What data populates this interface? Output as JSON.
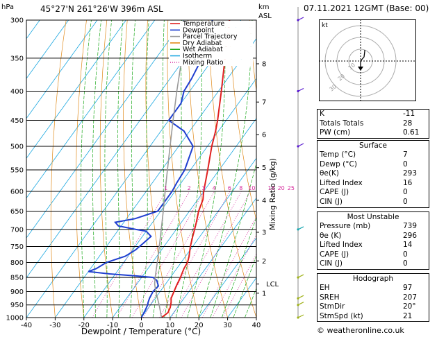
{
  "header": {
    "hpa_label": "hPa",
    "location": "45°27'N  261°26'W  396m  ASL",
    "km_label": "km",
    "asl_label": "ASL",
    "datetime": "07.11.2021  12GMT  (Base: 00)"
  },
  "footer": {
    "credit": "© weatheronline.co.uk"
  },
  "chart_data": {
    "type": "line",
    "title": "",
    "xlabel": "Dewpoint / Temperature (°C)",
    "ylabel": "",
    "right_label": "Mixing Ratio (g/kg)",
    "xlim": [
      -40,
      40
    ],
    "ylim": [
      1000,
      300
    ],
    "yscale": "log",
    "skew": true,
    "x_ticks": [
      -40,
      -30,
      -20,
      -10,
      0,
      10,
      20,
      30,
      40
    ],
    "pressure_ticks": [
      300,
      350,
      400,
      450,
      500,
      550,
      600,
      650,
      700,
      750,
      800,
      850,
      900,
      950,
      1000
    ],
    "km_ticks": [
      {
        "label": "8",
        "p": 358
      },
      {
        "label": "7",
        "p": 418
      },
      {
        "label": "6",
        "p": 477
      },
      {
        "label": "5",
        "p": 545
      },
      {
        "label": "4",
        "p": 622
      },
      {
        "label": "3",
        "p": 708
      },
      {
        "label": "2",
        "p": 795
      },
      {
        "label": "LCL",
        "p": 873
      },
      {
        "label": "1",
        "p": 906
      }
    ],
    "mixing_ratio_labels": [
      "1",
      "2",
      "3",
      "4",
      "6",
      "8",
      "10",
      "16",
      "20",
      "25"
    ],
    "mixing_ratio_values": [
      1,
      2,
      3,
      4,
      6,
      8,
      10,
      16,
      20,
      25
    ],
    "legend": {
      "position": "top-right",
      "entries": [
        {
          "name": "Temperature",
          "color": "#e02020",
          "style": "solid"
        },
        {
          "name": "Dewpoint",
          "color": "#1f3fd0",
          "style": "solid"
        },
        {
          "name": "Parcel Trajectory",
          "color": "#9a9a9a",
          "style": "solid"
        },
        {
          "name": "Dry Adiabat",
          "color": "#e08a1a",
          "style": "solid"
        },
        {
          "name": "Wet Adiabat",
          "color": "#1aa81a",
          "style": "solid"
        },
        {
          "name": "Isotherm",
          "color": "#1aa7e0",
          "style": "solid"
        },
        {
          "name": "Mixing Ratio",
          "color": "#d6269b",
          "style": "dotted"
        }
      ]
    },
    "series": [
      {
        "name": "Temperature",
        "color": "#e02020",
        "points": [
          [
            1000,
            7
          ],
          [
            980,
            8
          ],
          [
            960,
            7.5
          ],
          [
            940,
            6.5
          ],
          [
            925,
            5.5
          ],
          [
            900,
            4.8
          ],
          [
            880,
            4.2
          ],
          [
            850,
            3.5
          ],
          [
            820,
            2.5
          ],
          [
            800,
            2.2
          ],
          [
            780,
            1.2
          ],
          [
            750,
            -0.8
          ],
          [
            720,
            -2.5
          ],
          [
            700,
            -3.6
          ],
          [
            680,
            -4.8
          ],
          [
            650,
            -6.8
          ],
          [
            620,
            -8.2
          ],
          [
            600,
            -10
          ],
          [
            550,
            -14
          ],
          [
            500,
            -18.5
          ],
          [
            470,
            -21
          ],
          [
            450,
            -23
          ],
          [
            400,
            -29
          ],
          [
            350,
            -36
          ],
          [
            300,
            -44
          ]
        ]
      },
      {
        "name": "Dewpoint",
        "color": "#1f3fd0",
        "points": [
          [
            1000,
            0
          ],
          [
            970,
            -0.5
          ],
          [
            950,
            -1
          ],
          [
            940,
            -1.5
          ],
          [
            925,
            -2
          ],
          [
            900,
            -2.5
          ],
          [
            880,
            -2
          ],
          [
            860,
            -4
          ],
          [
            850,
            -6
          ],
          [
            845,
            -12
          ],
          [
            838,
            -22
          ],
          [
            830,
            -30
          ],
          [
            820,
            -28
          ],
          [
            800,
            -26
          ],
          [
            780,
            -21
          ],
          [
            760,
            -19
          ],
          [
            740,
            -18
          ],
          [
            720,
            -17
          ],
          [
            705,
            -20
          ],
          [
            700,
            -24
          ],
          [
            690,
            -31
          ],
          [
            680,
            -33
          ],
          [
            670,
            -27
          ],
          [
            650,
            -21
          ],
          [
            620,
            -21
          ],
          [
            600,
            -21
          ],
          [
            580,
            -21.5
          ],
          [
            550,
            -22
          ],
          [
            500,
            -25
          ],
          [
            470,
            -32
          ],
          [
            450,
            -40
          ],
          [
            420,
            -40
          ],
          [
            400,
            -42
          ],
          [
            380,
            -42.5
          ],
          [
            350,
            -44
          ],
          [
            320,
            -45
          ],
          [
            300,
            -50
          ]
        ]
      },
      {
        "name": "Parcel Trajectory",
        "color": "#9a9a9a",
        "points": [
          [
            1000,
            7
          ],
          [
            950,
            3
          ],
          [
            900,
            -1.5
          ],
          [
            873,
            -3.8
          ],
          [
            850,
            -5.3
          ],
          [
            800,
            -8.3
          ],
          [
            750,
            -11.6
          ],
          [
            700,
            -15.2
          ],
          [
            650,
            -19.1
          ],
          [
            600,
            -23.4
          ],
          [
            550,
            -28
          ],
          [
            500,
            -33
          ],
          [
            450,
            -38.5
          ],
          [
            400,
            -44.5
          ],
          [
            350,
            -51
          ],
          [
            300,
            -58.5
          ]
        ]
      }
    ],
    "wind_barbs_p": [
      300,
      400,
      500,
      700,
      850,
      925,
      950,
      1000
    ]
  },
  "indices": {
    "rows": [
      {
        "label": "K",
        "value": "-11"
      },
      {
        "label": "Totals Totals",
        "value": "28"
      },
      {
        "label": "PW (cm)",
        "value": "0.61"
      }
    ]
  },
  "surface": {
    "title": "Surface",
    "rows": [
      {
        "label": "Temp (°C)",
        "value": "7"
      },
      {
        "label": "Dewp (°C)",
        "value": "0"
      },
      {
        "label": "θe(K)",
        "value": "293"
      },
      {
        "label": "Lifted Index",
        "value": "16"
      },
      {
        "label": "CAPE (J)",
        "value": "0"
      },
      {
        "label": "CIN (J)",
        "value": "0"
      }
    ]
  },
  "unstable": {
    "title": "Most Unstable",
    "rows": [
      {
        "label": "Pressure (mb)",
        "value": "739"
      },
      {
        "label": "θe (K)",
        "value": "296"
      },
      {
        "label": "Lifted Index",
        "value": "14"
      },
      {
        "label": "CAPE (J)",
        "value": "0"
      },
      {
        "label": "CIN (J)",
        "value": "0"
      }
    ]
  },
  "hodograph": {
    "title": "Hodograph",
    "kt_label": "kt",
    "ring_labels": [
      "10",
      "20",
      "30"
    ],
    "rows": [
      {
        "label": "EH",
        "value": "97"
      },
      {
        "label": "SREH",
        "value": "207"
      },
      {
        "label": "StmDir",
        "value": "20°"
      },
      {
        "label": "StmSpd (kt)",
        "value": "21"
      }
    ]
  }
}
